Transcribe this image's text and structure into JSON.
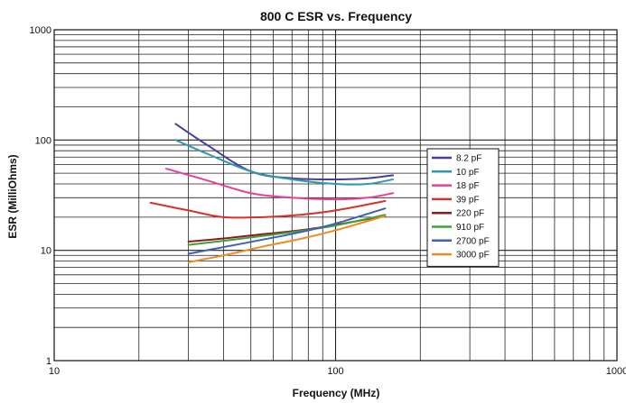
{
  "chart_data": {
    "type": "line",
    "title": "800 C ESR vs. Frequency",
    "xlabel": "Frequency (MHz)",
    "ylabel": "ESR (MilliOhms)",
    "x_scale": "log",
    "y_scale": "log",
    "xlim": [
      10,
      1000
    ],
    "ylim": [
      1,
      1000
    ],
    "x_ticks": [
      "10",
      "100",
      "1000"
    ],
    "y_ticks": [
      "1",
      "10",
      "100",
      "1000"
    ],
    "grid": true,
    "legend_position": "right",
    "series": [
      {
        "name": "8.2 pF",
        "color": "#4b3d99",
        "x": [
          27,
          35,
          50,
          70,
          100,
          130,
          160
        ],
        "y": [
          140,
          90,
          52,
          45,
          44,
          45,
          48
        ]
      },
      {
        "name": "10 pF",
        "color": "#2e98b0",
        "x": [
          27,
          35,
          50,
          70,
          100,
          130,
          160
        ],
        "y": [
          100,
          75,
          52,
          44,
          40,
          40,
          44
        ]
      },
      {
        "name": "18 pF",
        "color": "#e8409a",
        "x": [
          25,
          35,
          50,
          70,
          100,
          130,
          160
        ],
        "y": [
          55,
          43,
          33,
          30,
          29,
          30,
          33
        ]
      },
      {
        "name": "39 pF",
        "color": "#d9302c",
        "x": [
          22,
          30,
          40,
          55,
          75,
          100,
          150
        ],
        "y": [
          27,
          23,
          20,
          20,
          21,
          23,
          28
        ]
      },
      {
        "name": "220 pF",
        "color": "#8c1a1a",
        "x": [
          30,
          40,
          55,
          75,
          100,
          150
        ],
        "y": [
          12,
          12.8,
          14,
          15.2,
          17,
          20.5
        ]
      },
      {
        "name": "910 pF",
        "color": "#3aa23a",
        "x": [
          30,
          40,
          55,
          75,
          100,
          150
        ],
        "y": [
          11.2,
          12.2,
          13.5,
          15,
          16.8,
          21
        ]
      },
      {
        "name": "2700 pF",
        "color": "#4060b8",
        "x": [
          30,
          40,
          55,
          75,
          100,
          150
        ],
        "y": [
          9.3,
          10.7,
          12.5,
          14.6,
          17.5,
          24
        ]
      },
      {
        "name": "3000 pF",
        "color": "#f08a24",
        "x": [
          30,
          40,
          55,
          75,
          100,
          150
        ],
        "y": [
          7.8,
          9,
          10.8,
          12.7,
          15.2,
          20.5
        ]
      }
    ]
  }
}
